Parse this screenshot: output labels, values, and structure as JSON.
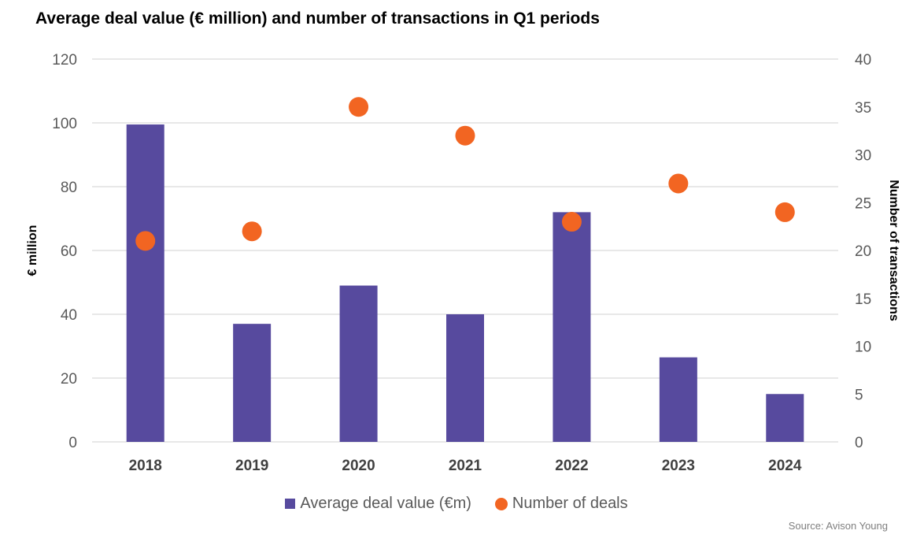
{
  "chart_data": {
    "type": "bar",
    "title": "Average deal value (€ million) and number of transactions in Q1 periods",
    "categories": [
      "2018",
      "2019",
      "2020",
      "2021",
      "2022",
      "2023",
      "2024"
    ],
    "series": [
      {
        "name": "Average deal value (€m)",
        "type": "bar",
        "axis": "left",
        "color": "#574a9e",
        "values": [
          99.5,
          37,
          49,
          40,
          72,
          26.5,
          15
        ]
      },
      {
        "name": "Number of deals",
        "type": "scatter",
        "axis": "right",
        "color": "#f26522",
        "values": [
          21,
          22,
          35,
          32,
          23,
          27,
          24
        ]
      }
    ],
    "ylabel": "€ million",
    "y2label": "Number of transactions",
    "ylim": [
      0,
      120
    ],
    "y2lim": [
      0,
      40
    ],
    "yticks": [
      "0",
      "20",
      "40",
      "60",
      "80",
      "100",
      "120"
    ],
    "y2ticks": [
      "0",
      "5",
      "10",
      "15",
      "20",
      "25",
      "30",
      "35",
      "40"
    ],
    "grid": true,
    "legend_position": "bottom",
    "source": "Source: Avison Young"
  }
}
